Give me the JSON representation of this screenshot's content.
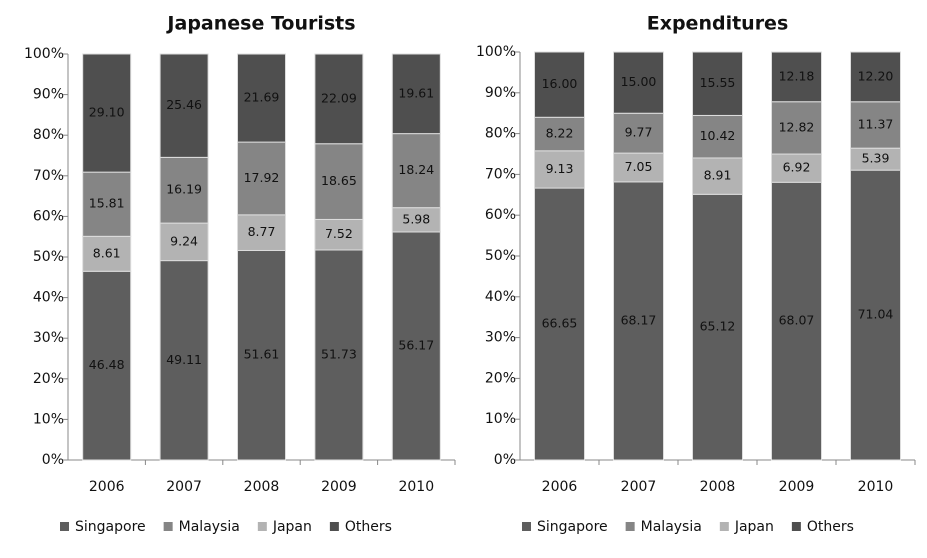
{
  "chart_data": [
    {
      "type": "stacked_bar",
      "title": "Japanese Tourists",
      "categories": [
        "2006",
        "2007",
        "2008",
        "2009",
        "2010"
      ],
      "ylim": [
        0,
        100
      ],
      "yticks": [
        {
          "value": 0,
          "label": "0%"
        },
        {
          "value": 10,
          "label": "10%"
        },
        {
          "value": 20,
          "label": "20%"
        },
        {
          "value": 30,
          "label": "30%"
        },
        {
          "value": 40,
          "label": "40%"
        },
        {
          "value": 50,
          "label": "50%"
        },
        {
          "value": 60,
          "label": "60%"
        },
        {
          "value": 70,
          "label": "70%"
        },
        {
          "value": 80,
          "label": "80%"
        },
        {
          "value": 90,
          "label": "90%"
        },
        {
          "value": 100,
          "label": "100%"
        }
      ],
      "series": [
        {
          "name": "Singapore",
          "color": "#5e5e5e",
          "values": [
            46.48,
            49.11,
            51.61,
            51.73,
            56.17
          ],
          "value_labels": [
            "46.48",
            "49.11",
            "51.61",
            "51.73",
            "56.17"
          ]
        },
        {
          "name": "Malaysia",
          "color": "#858585",
          "values": [
            15.81,
            16.19,
            17.92,
            18.65,
            18.24
          ],
          "value_labels": [
            "15.81",
            "16.19",
            "17.92",
            "18.65",
            "18.24"
          ]
        },
        {
          "name": "Japan",
          "color": "#b3b3b3",
          "values": [
            8.61,
            9.24,
            8.77,
            7.52,
            5.98
          ],
          "value_labels": [
            "8.61",
            "9.24",
            "8.77",
            "7.52",
            "5.98"
          ]
        },
        {
          "name": "Others",
          "color": "#4f4f4f",
          "values": [
            29.1,
            25.46,
            21.69,
            22.09,
            19.61
          ],
          "value_labels": [
            "29.10",
            "25.46",
            "21.69",
            "22.09",
            "19.61"
          ]
        }
      ]
    },
    {
      "type": "stacked_bar",
      "title": "Expenditures",
      "categories": [
        "2006",
        "2007",
        "2008",
        "2009",
        "2010"
      ],
      "ylim": [
        0,
        100
      ],
      "yticks": [
        {
          "value": 0,
          "label": "0%"
        },
        {
          "value": 10,
          "label": "10%"
        },
        {
          "value": 20,
          "label": "20%"
        },
        {
          "value": 30,
          "label": "30%"
        },
        {
          "value": 40,
          "label": "40%"
        },
        {
          "value": 50,
          "label": "50%"
        },
        {
          "value": 60,
          "label": "60%"
        },
        {
          "value": 70,
          "label": "70%"
        },
        {
          "value": 80,
          "label": "80%"
        },
        {
          "value": 90,
          "label": "90%"
        },
        {
          "value": 100,
          "label": "100%"
        }
      ],
      "series": [
        {
          "name": "Singapore",
          "color": "#5e5e5e",
          "values": [
            66.65,
            68.17,
            65.12,
            68.07,
            71.04
          ],
          "value_labels": [
            "66.65",
            "68.17",
            "65.12",
            "68.07",
            "71.04"
          ]
        },
        {
          "name": "Malaysia",
          "color": "#858585",
          "values": [
            8.22,
            9.77,
            10.42,
            12.82,
            11.37
          ],
          "value_labels": [
            "8.22",
            "9.77",
            "10.42",
            "12.82",
            "11.37"
          ]
        },
        {
          "name": "Japan",
          "color": "#b3b3b3",
          "values": [
            9.13,
            7.05,
            8.91,
            6.92,
            5.39
          ],
          "value_labels": [
            "9.13",
            "7.05",
            "8.91",
            "6.92",
            "5.39"
          ]
        },
        {
          "name": "Others",
          "color": "#4f4f4f",
          "values": [
            16.0,
            15.0,
            15.55,
            12.18,
            12.2
          ],
          "value_labels": [
            "16.00",
            "15.00",
            "15.55",
            "12.18",
            "12.20"
          ]
        }
      ]
    }
  ]
}
